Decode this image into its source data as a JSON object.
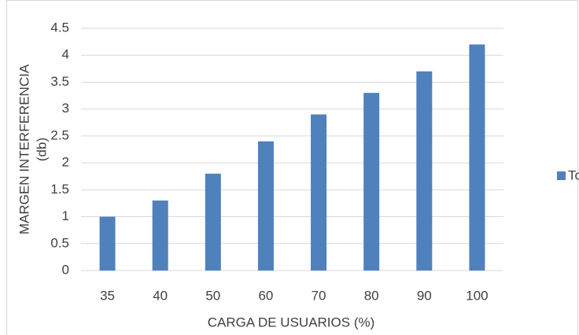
{
  "chart_data": {
    "type": "bar",
    "ylabel": [
      "MARGEN INTERFERENCIA",
      "(db)"
    ],
    "xlabel": "CARGA DE USUARIOS (%)",
    "categories": [
      "35",
      "40",
      "50",
      "60",
      "70",
      "80",
      "90",
      "100"
    ],
    "series": [
      {
        "name": "Total",
        "color": "#4f81bd",
        "values": [
          1,
          1.3,
          1.8,
          2.4,
          2.9,
          3.3,
          3.7,
          4.2
        ]
      }
    ],
    "ylim": [
      0,
      4.5
    ],
    "yticks": [
      0,
      0.5,
      1,
      1.5,
      2,
      2.5,
      3,
      3.5,
      4,
      4.5
    ],
    "grid": true,
    "legend": "right"
  }
}
